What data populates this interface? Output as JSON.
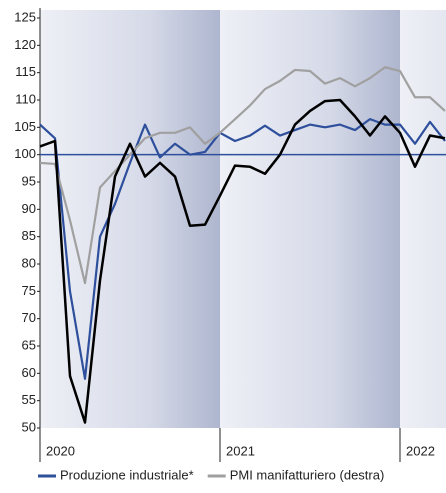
{
  "chart_data": {
    "type": "line",
    "categories": [
      "2020",
      null,
      null,
      null,
      null,
      null,
      null,
      null,
      null,
      null,
      null,
      null,
      "2021",
      null,
      null,
      null,
      null,
      null,
      null,
      null,
      null,
      null,
      null,
      null,
      "2022",
      null,
      null,
      null
    ],
    "series": [
      {
        "name": "Produzione industriale*",
        "color": "#2e4f9c",
        "values": [
          105.5,
          103,
          75,
          59,
          85,
          91,
          98.5,
          105.5,
          99.5,
          102,
          100,
          100.5,
          104,
          102.5,
          103.5,
          105.3,
          103.5,
          104.5,
          105.5,
          105,
          105.5,
          104.5,
          106.5,
          105.5,
          105.5,
          102,
          106,
          102.5
        ]
      },
      {
        "name": "PMI manifatturiero (destra)",
        "color": "#a0a0a0",
        "values": [
          98.5,
          98.3,
          88,
          76.5,
          94,
          97,
          100,
          103,
          104,
          104,
          105,
          102,
          104,
          106.5,
          109,
          112,
          113.5,
          115.5,
          115.3,
          113,
          114,
          112.5,
          114,
          116,
          115.3,
          110.5,
          110.5,
          108
        ]
      },
      {
        "color": "#000000",
        "values": [
          101.5,
          102.5,
          59.5,
          51,
          77,
          96,
          102,
          96,
          98.5,
          96,
          87,
          87.2,
          92.5,
          98,
          97.8,
          96.5,
          100,
          105.5,
          108,
          109.8,
          110,
          107,
          103.5,
          107,
          104,
          97.8,
          103.5,
          103
        ]
      }
    ],
    "reference_line": 100,
    "ylim": [
      50,
      125
    ],
    "yticks": [
      50,
      55,
      60,
      65,
      70,
      75,
      80,
      85,
      90,
      95,
      100,
      105,
      110,
      115,
      120,
      125
    ]
  }
}
